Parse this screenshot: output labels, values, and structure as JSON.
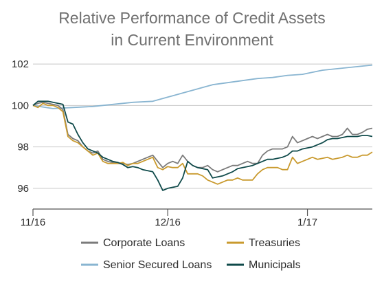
{
  "chart_data": {
    "type": "line",
    "title": "Relative Performance of Credit Assets in Current Environment",
    "title_lines": [
      "Relative Performance of Credit Assets",
      "in Current Environment"
    ],
    "xlabel": "",
    "ylabel": "",
    "ylim": [
      95,
      102.5
    ],
    "xlim": [
      0,
      68
    ],
    "yticks": [
      96,
      98,
      100,
      102
    ],
    "ytick_labels": [
      "96",
      "98",
      "100",
      "102"
    ],
    "xticks": [
      0,
      27,
      55
    ],
    "xtick_labels": [
      "11/16",
      "12/16",
      "1/17"
    ],
    "grid": "horizontal",
    "legend_position": "bottom",
    "series": [
      {
        "name": "Corporate Loans",
        "color": "#7b7b7b",
        "x": [
          0,
          1,
          2,
          3,
          4,
          5,
          6,
          7,
          8,
          9,
          10,
          11,
          12,
          13,
          14,
          15,
          16,
          17,
          18,
          19,
          20,
          21,
          22,
          23,
          24,
          25,
          26,
          27,
          28,
          29,
          30,
          31,
          32,
          33,
          34,
          35,
          36,
          37,
          38,
          39,
          40,
          41,
          42,
          43,
          44,
          45,
          46,
          47,
          48,
          49,
          50,
          51,
          52,
          53,
          54,
          55,
          56,
          57,
          58,
          59,
          60,
          61,
          62,
          63,
          64,
          65,
          66,
          67,
          68
        ],
        "values": [
          100.0,
          100.1,
          100.15,
          100.1,
          100.05,
          100.0,
          99.8,
          98.6,
          98.4,
          98.3,
          98.0,
          97.8,
          97.7,
          97.8,
          97.4,
          97.3,
          97.25,
          97.2,
          97.2,
          97.15,
          97.2,
          97.3,
          97.4,
          97.5,
          97.6,
          97.3,
          97.0,
          97.2,
          97.3,
          97.2,
          97.6,
          97.3,
          97.1,
          97.0,
          97.0,
          97.1,
          96.9,
          96.8,
          96.9,
          97.0,
          97.1,
          97.1,
          97.2,
          97.3,
          97.2,
          97.2,
          97.6,
          97.8,
          97.9,
          97.9,
          97.9,
          98.0,
          98.5,
          98.2,
          98.3,
          98.4,
          98.5,
          98.4,
          98.5,
          98.6,
          98.5,
          98.5,
          98.6,
          98.9,
          98.6,
          98.6,
          98.7,
          98.85,
          98.9
        ]
      },
      {
        "name": "Treasuries",
        "color": "#c99a2e",
        "x": [
          0,
          1,
          2,
          3,
          4,
          5,
          6,
          7,
          8,
          9,
          10,
          11,
          12,
          13,
          14,
          15,
          16,
          17,
          18,
          19,
          20,
          21,
          22,
          23,
          24,
          25,
          26,
          27,
          28,
          29,
          30,
          31,
          32,
          33,
          34,
          35,
          36,
          37,
          38,
          39,
          40,
          41,
          42,
          43,
          44,
          45,
          46,
          47,
          48,
          49,
          50,
          51,
          52,
          53,
          54,
          55,
          56,
          57,
          58,
          59,
          60,
          61,
          62,
          63,
          64,
          65,
          66,
          67,
          68
        ],
        "values": [
          100.0,
          99.9,
          100.1,
          100.0,
          100.0,
          99.9,
          99.7,
          98.5,
          98.3,
          98.2,
          98.0,
          97.8,
          97.6,
          97.7,
          97.3,
          97.2,
          97.2,
          97.2,
          97.25,
          97.1,
          97.2,
          97.2,
          97.3,
          97.4,
          97.5,
          97.0,
          96.9,
          97.05,
          97.0,
          97.0,
          97.2,
          96.7,
          96.7,
          96.7,
          96.6,
          96.4,
          96.3,
          96.2,
          96.3,
          96.4,
          96.4,
          96.5,
          96.4,
          96.4,
          96.4,
          96.7,
          96.9,
          97.0,
          97.0,
          97.0,
          96.9,
          96.9,
          97.5,
          97.2,
          97.3,
          97.4,
          97.5,
          97.4,
          97.45,
          97.5,
          97.4,
          97.45,
          97.5,
          97.6,
          97.5,
          97.5,
          97.6,
          97.6,
          97.75
        ]
      },
      {
        "name": "Senior Secured Loans",
        "color": "#89b5d1",
        "x": [
          0,
          4,
          8,
          12,
          16,
          20,
          24,
          27,
          30,
          33,
          36,
          39,
          42,
          45,
          48,
          51,
          54,
          56,
          58,
          60,
          62,
          64,
          66,
          68
        ],
        "values": [
          100.0,
          99.85,
          99.9,
          99.95,
          100.05,
          100.15,
          100.2,
          100.4,
          100.6,
          100.8,
          101.0,
          101.1,
          101.2,
          101.3,
          101.35,
          101.45,
          101.5,
          101.6,
          101.7,
          101.75,
          101.8,
          101.85,
          101.9,
          101.95
        ]
      },
      {
        "name": "Municipals",
        "color": "#0f4a4a",
        "x": [
          0,
          1,
          2,
          3,
          4,
          5,
          6,
          7,
          8,
          9,
          10,
          11,
          12,
          13,
          14,
          15,
          16,
          17,
          18,
          19,
          20,
          21,
          22,
          23,
          24,
          25,
          26,
          27,
          28,
          29,
          30,
          31,
          32,
          33,
          34,
          35,
          36,
          37,
          38,
          39,
          40,
          41,
          42,
          43,
          44,
          45,
          46,
          47,
          48,
          49,
          50,
          51,
          52,
          53,
          54,
          55,
          56,
          57,
          58,
          59,
          60,
          61,
          62,
          63,
          64,
          65,
          66,
          67,
          68
        ],
        "values": [
          100.0,
          100.2,
          100.2,
          100.2,
          100.15,
          100.1,
          100.05,
          99.2,
          99.1,
          98.6,
          98.2,
          97.9,
          97.8,
          97.7,
          97.5,
          97.4,
          97.3,
          97.25,
          97.15,
          97.0,
          97.05,
          97.0,
          96.9,
          96.85,
          96.8,
          96.4,
          95.9,
          96.0,
          96.05,
          96.1,
          96.5,
          97.3,
          97.1,
          97.0,
          96.95,
          96.9,
          96.5,
          96.55,
          96.6,
          96.7,
          96.8,
          96.95,
          97.0,
          97.05,
          97.1,
          97.2,
          97.3,
          97.4,
          97.4,
          97.45,
          97.5,
          97.6,
          97.8,
          97.8,
          97.9,
          97.95,
          98.0,
          98.1,
          98.2,
          98.35,
          98.4,
          98.4,
          98.45,
          98.5,
          98.5,
          98.5,
          98.55,
          98.55,
          98.5
        ]
      }
    ],
    "legend_layout": [
      [
        "Corporate Loans",
        "Treasuries"
      ],
      [
        "Senior Secured Loans",
        "Municipals"
      ]
    ]
  }
}
